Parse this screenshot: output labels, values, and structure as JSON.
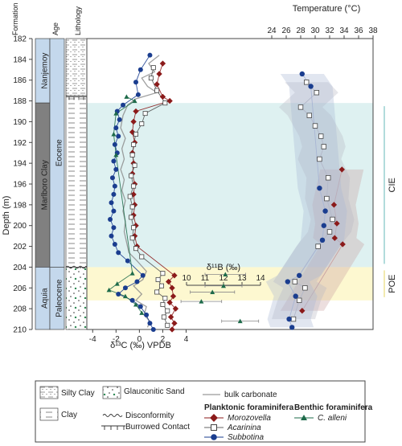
{
  "chart_data": {
    "type": "scatter",
    "ylabel": "Depth (m)",
    "ylim": [
      210,
      182
    ],
    "yticks": [
      182,
      184,
      186,
      188,
      190,
      192,
      194,
      196,
      198,
      200,
      202,
      204,
      206,
      208,
      210
    ],
    "column_headers": {
      "formation": "Formation",
      "age": "Age",
      "lithology": "Lithology"
    },
    "formations": [
      {
        "name": "Nanjemoy",
        "top": 182,
        "bottom": 188.2
      },
      {
        "name": "Marlboro Clay",
        "top": 188.2,
        "bottom": 204
      },
      {
        "name": "Aquia",
        "top": 204,
        "bottom": 210
      }
    ],
    "ages": [
      {
        "name": "Eocene",
        "top": 182,
        "bottom": 204
      },
      {
        "name": "Paleocene",
        "top": 204,
        "bottom": 210
      }
    ],
    "lithology": [
      {
        "type": "silty_clay",
        "top": 182,
        "bottom": 187.5
      },
      {
        "type": "clay",
        "top": 187.5,
        "bottom": 204
      },
      {
        "type": "glauconitic_sand",
        "top": 204,
        "bottom": 210
      }
    ],
    "carbon": {
      "xlabel": "δ¹³C (‰) VPDB",
      "xlim": [
        -4.5,
        5
      ],
      "xticks": [
        -4,
        -2,
        0,
        2,
        4
      ],
      "series": [
        {
          "name": "bulk carbonate",
          "color": "#888888",
          "points": [
            [
              1.7,
              183.6
            ],
            [
              0.8,
              184.4
            ],
            [
              1.3,
              185.2
            ],
            [
              0.2,
              185.8
            ],
            [
              0.7,
              186.6
            ],
            [
              1.5,
              187.2
            ],
            [
              -0.3,
              187.8
            ],
            [
              -1.0,
              188.4
            ],
            [
              -1.4,
              189.4
            ],
            [
              -1.6,
              190.6
            ],
            [
              -1.2,
              191.6
            ],
            [
              -1.5,
              192.6
            ],
            [
              -1.3,
              193.6
            ],
            [
              -1.6,
              194.6
            ],
            [
              -1.3,
              195.6
            ],
            [
              -1.5,
              196.6
            ],
            [
              -1.2,
              197.6
            ],
            [
              -1.4,
              198.6
            ],
            [
              -1.2,
              199.6
            ],
            [
              -1.3,
              200.6
            ],
            [
              -1.1,
              201.6
            ],
            [
              -0.9,
              202.6
            ],
            [
              -0.2,
              203.4
            ],
            [
              0.6,
              204.4
            ],
            [
              0.3,
              205.2
            ],
            [
              -0.5,
              205.8
            ],
            [
              0.2,
              206.6
            ],
            [
              -0.3,
              207.2
            ],
            [
              0.6,
              207.8
            ],
            [
              0.4,
              208.6
            ],
            [
              0.9,
              209.2
            ],
            [
              0.7,
              209.8
            ]
          ]
        },
        {
          "name": "Morozovella",
          "color": "#8b1a1a",
          "points": [
            [
              2.0,
              184.4
            ],
            [
              1.7,
              185.4
            ],
            [
              1.5,
              186.4
            ],
            [
              2.0,
              187.6
            ],
            [
              2.6,
              188.0
            ],
            [
              -0.3,
              189.0
            ],
            [
              -0.5,
              190.0
            ],
            [
              -0.6,
              191.0
            ],
            [
              -0.4,
              192.0
            ],
            [
              -0.6,
              193.0
            ],
            [
              -0.5,
              194.0
            ],
            [
              -0.6,
              195.0
            ],
            [
              -0.4,
              196.0
            ],
            [
              -0.5,
              197.0
            ],
            [
              -0.4,
              198.0
            ],
            [
              -0.5,
              199.0
            ],
            [
              -0.3,
              200.0
            ],
            [
              -0.4,
              201.0
            ],
            [
              -0.2,
              202.0
            ],
            [
              3.0,
              204.8
            ],
            [
              2.5,
              205.4
            ],
            [
              2.8,
              206.0
            ],
            [
              2.9,
              206.8
            ],
            [
              2.6,
              207.4
            ],
            [
              3.1,
              208.0
            ],
            [
              2.7,
              208.8
            ],
            [
              3.0,
              209.4
            ],
            [
              2.8,
              210.0
            ]
          ]
        },
        {
          "name": "Acarinina",
          "color": "#555555",
          "points": [
            [
              1.2,
              184.8
            ],
            [
              1.0,
              185.8
            ],
            [
              1.5,
              187.0
            ],
            [
              2.2,
              188.2
            ],
            [
              0.5,
              189.2
            ],
            [
              0.2,
              190.2
            ],
            [
              -0.3,
              191.2
            ],
            [
              -0.5,
              192.2
            ],
            [
              -0.6,
              193.2
            ],
            [
              -0.4,
              194.2
            ],
            [
              -0.7,
              195.2
            ],
            [
              -0.5,
              196.2
            ],
            [
              -0.8,
              197.2
            ],
            [
              -0.6,
              198.2
            ],
            [
              -0.7,
              199.2
            ],
            [
              -0.5,
              200.2
            ],
            [
              -0.6,
              201.2
            ],
            [
              -0.3,
              202.2
            ],
            [
              0.2,
              203.0
            ],
            [
              2.0,
              204.6
            ],
            [
              1.6,
              205.2
            ],
            [
              1.9,
              205.8
            ],
            [
              1.5,
              206.4
            ],
            [
              2.2,
              207.0
            ],
            [
              2.0,
              207.6
            ],
            [
              2.4,
              208.2
            ],
            [
              2.1,
              208.8
            ],
            [
              2.4,
              209.6
            ]
          ]
        },
        {
          "name": "Subbotina",
          "color": "#1a3d8f",
          "points": [
            [
              0.9,
              183.6
            ],
            [
              0.1,
              185.0
            ],
            [
              -0.3,
              186.2
            ],
            [
              -0.1,
              187.4
            ],
            [
              -1.4,
              188.4
            ],
            [
              -1.9,
              189.0
            ],
            [
              -1.7,
              189.8
            ],
            [
              -2.0,
              190.6
            ],
            [
              -1.8,
              191.4
            ],
            [
              -2.1,
              192.2
            ],
            [
              -1.9,
              193.0
            ],
            [
              -2.2,
              193.8
            ],
            [
              -2.0,
              194.6
            ],
            [
              -2.3,
              195.4
            ],
            [
              -2.1,
              196.2
            ],
            [
              -2.2,
              197.0
            ],
            [
              -2.4,
              197.8
            ],
            [
              -2.2,
              198.6
            ],
            [
              -2.5,
              199.4
            ],
            [
              -2.2,
              200.2
            ],
            [
              -2.4,
              201.0
            ],
            [
              -2.1,
              201.8
            ],
            [
              -1.8,
              202.6
            ],
            [
              -1.0,
              203.4
            ],
            [
              0.3,
              204.8
            ],
            [
              -0.2,
              205.4
            ],
            [
              -1.2,
              206.0
            ],
            [
              -1.8,
              206.6
            ],
            [
              -0.6,
              207.2
            ],
            [
              0.1,
              207.8
            ],
            [
              0.6,
              208.6
            ],
            [
              0.9,
              209.4
            ],
            [
              1.2,
              210.0
            ]
          ]
        },
        {
          "name": "C. alleni",
          "color": "#1e6b4a",
          "points": [
            [
              -1.1,
              187.6
            ],
            [
              -0.4,
              188.0
            ],
            [
              -2.0,
              189.2
            ],
            [
              -2.2,
              191.2
            ],
            [
              -2.0,
              193.2
            ],
            [
              -0.6,
              204.6
            ],
            [
              -1.9,
              205.6
            ],
            [
              -2.6,
              206.2
            ],
            [
              -1.2,
              206.8
            ],
            [
              -0.3,
              207.6
            ],
            [
              0.2,
              208.4
            ]
          ]
        }
      ]
    },
    "boron": {
      "xlabel": "δ¹¹B (‰)",
      "xlim": [
        10,
        14
      ],
      "xticks": [
        10,
        11,
        12,
        13,
        14
      ],
      "points": [
        {
          "x": 12.1,
          "y": 204.7,
          "err": 1.1
        },
        {
          "x": 12.0,
          "y": 205.8,
          "err": 1.0
        },
        {
          "x": 11.4,
          "y": 206.4,
          "err": 1.2
        },
        {
          "x": 10.8,
          "y": 207.3,
          "err": 1.1
        },
        {
          "x": 12.9,
          "y": 209.2,
          "err": 1.0
        }
      ]
    },
    "temperature": {
      "xlabel": "Temperature (°C)",
      "xlim": [
        22,
        38
      ],
      "xticks": [
        24,
        26,
        28,
        30,
        32,
        34,
        36,
        38
      ],
      "series": [
        {
          "name": "Morozovella",
          "points": [
            [
              33.7,
              194.6
            ],
            [
              32.6,
              198.0
            ],
            [
              33.0,
              199.8
            ],
            [
              32.7,
              201.2
            ],
            [
              33.8,
              201.8
            ],
            [
              28.2,
              208.2
            ]
          ]
        },
        {
          "name": "Acarinina",
          "points": [
            [
              28.8,
              186.2
            ],
            [
              30.2,
              187.2
            ],
            [
              28.0,
              188.6
            ],
            [
              29.2,
              189.4
            ],
            [
              30.0,
              190.4
            ],
            [
              30.8,
              191.4
            ],
            [
              31.2,
              192.4
            ],
            [
              30.6,
              193.6
            ],
            [
              31.8,
              195.4
            ],
            [
              31.6,
              197.4
            ],
            [
              32.4,
              199.4
            ],
            [
              32.0,
              200.6
            ],
            [
              30.4,
              202.0
            ],
            [
              27.2,
              205.4
            ],
            [
              28.6,
              206.0
            ],
            [
              27.8,
              207.2
            ],
            [
              27.0,
              209.0
            ]
          ]
        },
        {
          "name": "Subbotina",
          "points": [
            [
              28.2,
              185.4
            ],
            [
              29.4,
              186.6
            ],
            [
              30.6,
              196.4
            ],
            [
              31.4,
              198.6
            ],
            [
              31.2,
              200.0
            ],
            [
              31.0,
              201.4
            ],
            [
              27.8,
              204.8
            ],
            [
              26.2,
              205.4
            ],
            [
              27.3,
              206.8
            ],
            [
              26.4,
              209.0
            ],
            [
              26.8,
              209.8
            ]
          ]
        }
      ]
    },
    "intervals": [
      {
        "label": "CIE",
        "top": 188.2,
        "bottom": 204,
        "color": "#d8efef"
      },
      {
        "label": "POE",
        "top": 204,
        "bottom": 207.2,
        "color": "#fdf7c8"
      }
    ],
    "legend": {
      "silty_clay": "Silty Clay",
      "clay": "Clay",
      "glauconitic_sand": "Glauconitic Sand",
      "disconformity": "Disconformity",
      "burrowed_contact": "Burrowed Contact",
      "bulk_carbonate": "bulk carbonate",
      "planktonic_title": "Planktonic foraminifera",
      "benthic_title": "Benthic foraminifera",
      "morozovella": "Morozovella",
      "acarinina": "Acarinina",
      "subbotina": "Subbotina",
      "c_alleni": "C. alleni"
    }
  }
}
